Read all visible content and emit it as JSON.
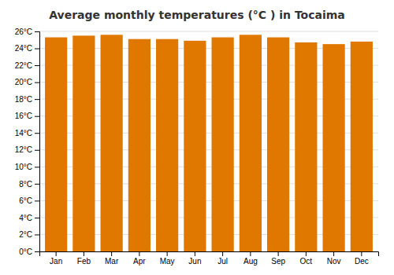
{
  "chart_data": {
    "type": "bar",
    "title": "Average monthly temperatures (°C ) in Tocaima",
    "categories": [
      "Jan",
      "Feb",
      "Mar",
      "Apr",
      "May",
      "Jun",
      "Jul",
      "Aug",
      "Sep",
      "Oct",
      "Nov",
      "Dec"
    ],
    "values": [
      25.3,
      25.5,
      25.6,
      25.1,
      25.1,
      24.9,
      25.3,
      25.6,
      25.3,
      24.7,
      24.5,
      24.8
    ],
    "color": "#E07800",
    "ylim": [
      0,
      26
    ],
    "yticks": [
      {
        "value": 0,
        "label": "0°C"
      },
      {
        "value": 2,
        "label": "2°C"
      },
      {
        "value": 4,
        "label": "4°C"
      },
      {
        "value": 6,
        "label": "6°C"
      },
      {
        "value": 8,
        "label": "8°C"
      },
      {
        "value": 10,
        "label": "10°C"
      },
      {
        "value": 12,
        "label": "12°C"
      },
      {
        "value": 14,
        "label": "14°C"
      },
      {
        "value": 16,
        "label": "16°C"
      },
      {
        "value": 18,
        "label": "18°C"
      },
      {
        "value": 20,
        "label": "20°C"
      },
      {
        "value": 22,
        "label": "22°C"
      },
      {
        "value": 24,
        "label": "24°C"
      },
      {
        "value": 26,
        "label": "26°C"
      }
    ],
    "grid": true
  }
}
